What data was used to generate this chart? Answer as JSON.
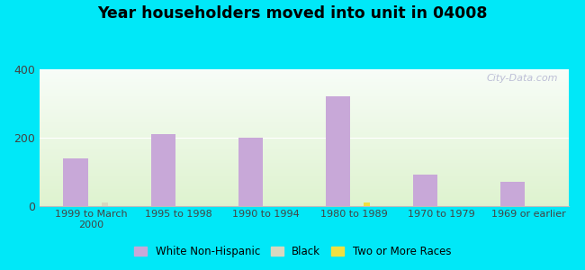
{
  "title": "Year householders moved into unit in 04008",
  "categories": [
    "1999 to March\n2000",
    "1995 to 1998",
    "1990 to 1994",
    "1980 to 1989",
    "1970 to 1979",
    "1969 or earlier"
  ],
  "white_nonhisp": [
    140,
    210,
    200,
    320,
    90,
    70
  ],
  "black": [
    10,
    0,
    0,
    0,
    0,
    0
  ],
  "two_or_more": [
    0,
    0,
    0,
    10,
    0,
    0
  ],
  "bar_color_white": "#c8a8d8",
  "bar_color_black": "#d8d8c0",
  "bar_color_two": "#f0e040",
  "background_outer": "#00e8f8",
  "ylim": [
    0,
    400
  ],
  "yticks": [
    0,
    200,
    400
  ],
  "bar_width": 0.28,
  "legend_labels": [
    "White Non-Hispanic",
    "Black",
    "Two or More Races"
  ],
  "watermark": "City-Data.com"
}
